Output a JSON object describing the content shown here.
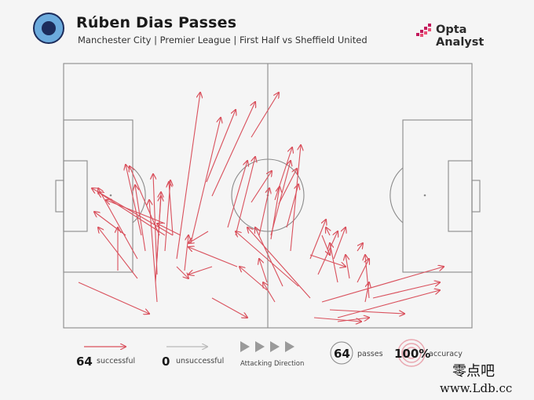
{
  "header": {
    "title": "Rúben Dias Passes",
    "subtitle": "Manchester City | Premier League | First Half vs Sheffield United",
    "brand": "Opta Analyst"
  },
  "colors": {
    "pass_successful": "#d9505c",
    "pass_unsuccessful": "#b9b9b9",
    "pitch_line": "#8a8a8a",
    "background": "#f5f5f5",
    "crest": "#6cabdd"
  },
  "legend": {
    "successful_count": "64",
    "successful_label": "successful",
    "unsuccessful_count": "0",
    "unsuccessful_label": "unsuccessful",
    "direction_label": "Attacking Direction",
    "passes_count": "64",
    "passes_label": "passes",
    "accuracy_value": "100%",
    "accuracy_label": "accuracy"
  },
  "watermark": {
    "chinese": "零点吧",
    "url": "www.Ldb.cc"
  }
}
